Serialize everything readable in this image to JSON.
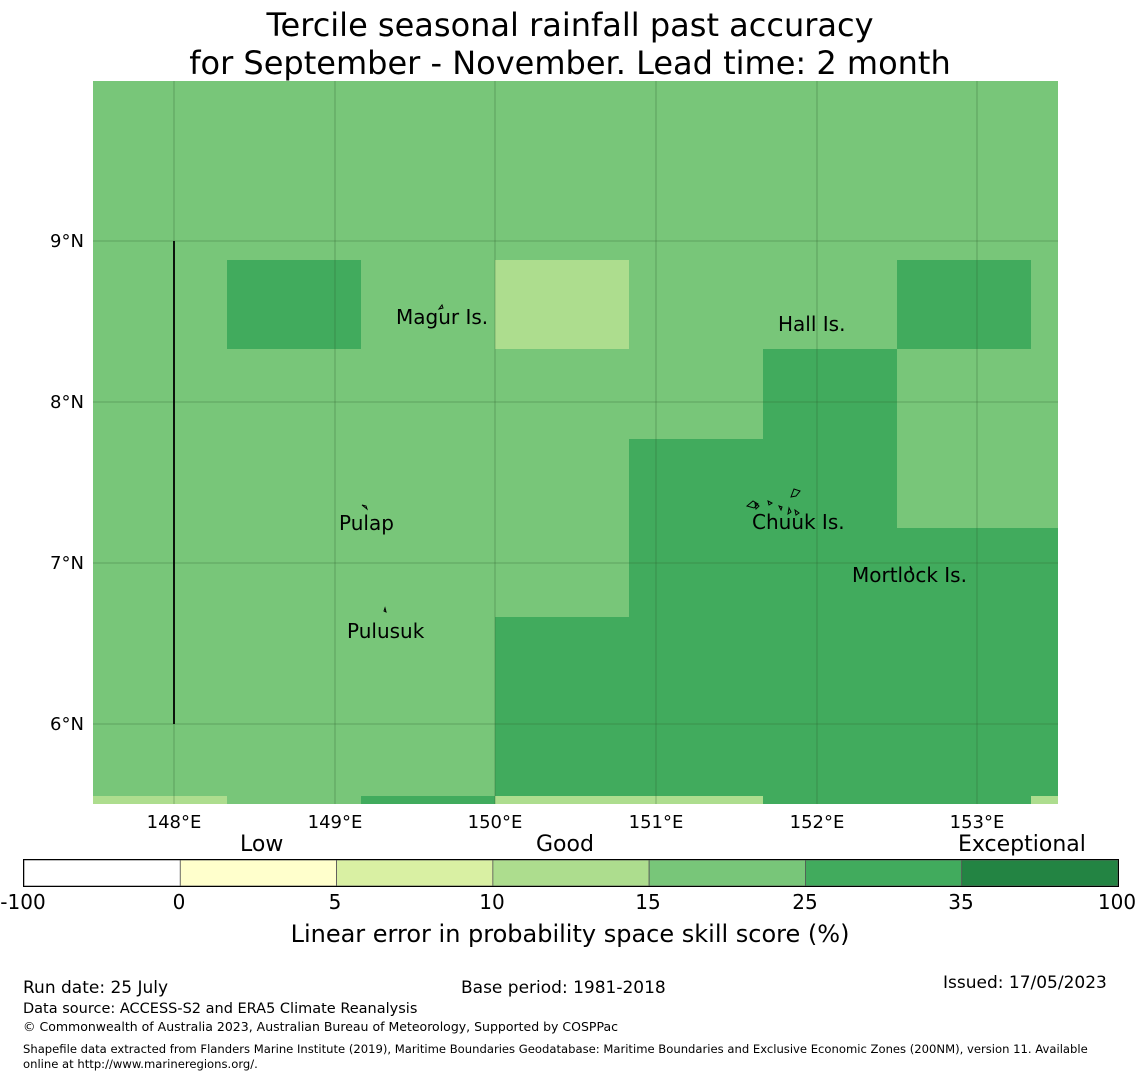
{
  "title_line1": "Tercile seasonal rainfall past accuracy",
  "title_line2": "for September - November. Lead time: 2 month",
  "lat_labels": [
    "9°N",
    "8°N",
    "7°N",
    "6°N"
  ],
  "lon_labels": [
    "148°E",
    "149°E",
    "150°E",
    "151°E",
    "152°E",
    "153°E"
  ],
  "places": [
    "Magur Is.",
    "Hall Is.",
    "Pulap",
    "Chuuk Is.",
    "Mortlock Is.",
    "Pulusuk"
  ],
  "legend": {
    "categories": [
      "Low",
      "Good",
      "Exceptional"
    ],
    "ticks": [
      "-100",
      "0",
      "5",
      "10",
      "15",
      "25",
      "35",
      "100"
    ],
    "colors": [
      "#ffffff",
      "#ffffcc",
      "#d9f0a3",
      "#addd8e",
      "#78c679",
      "#41ab5d",
      "#238443"
    ],
    "title": "Linear error in probability space skill score (%)"
  },
  "footer": {
    "run_date": "Run date: 25 July",
    "base_period": "Base period: 1981-2018",
    "issued": "Issued: 17/05/2023",
    "data_source": "Data source: ACCESS-S2 and ERA5 Climate Reanalysis",
    "copyright": "© Commonwealth of Australia 2023, Australian Bureau of Meteorology, Supported by COSPPac",
    "shapefile_line1": "Shapefile data extracted from Flanders Marine Institute (2019), Maritime Boundaries Geodatabase: Maritime Boundaries and Exclusive Economic Zones (200NM), version 11. Available",
    "shapefile_line2": "online at http://www.marineregions.org/."
  }
}
